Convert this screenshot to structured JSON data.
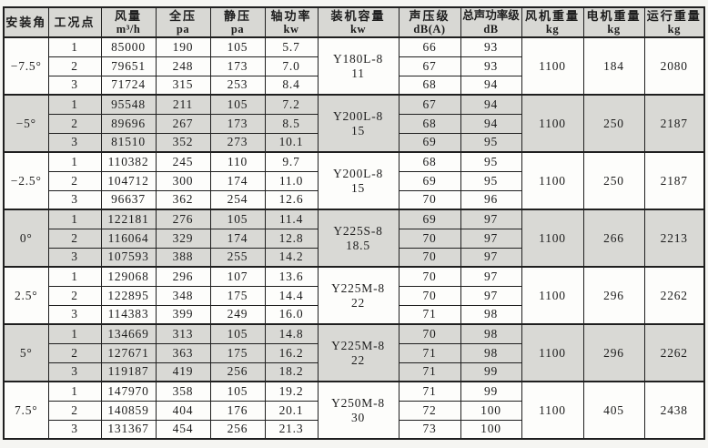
{
  "colors": {
    "page_bg": "#f5f5f2",
    "header_bg": "#d8d8d4",
    "shaded_row_bg": "#d9d9d5",
    "plain_row_bg": "#fdfdfb",
    "border": "#1f1f1f",
    "text": "#1d1d1d"
  },
  "table": {
    "columns": [
      {
        "label": "安装角",
        "unit": ""
      },
      {
        "label": "工况点",
        "unit": ""
      },
      {
        "label": "风量",
        "unit": "m³/h"
      },
      {
        "label": "全压",
        "unit": "pa"
      },
      {
        "label": "静压",
        "unit": "pa"
      },
      {
        "label": "轴功率",
        "unit": "kw"
      },
      {
        "label": "装机容量",
        "unit": "kw"
      },
      {
        "label": "声压级",
        "unit": "dB(A)"
      },
      {
        "label": "总声功率级",
        "unit": "dB"
      },
      {
        "label": "风机重量",
        "unit": "kg"
      },
      {
        "label": "电机重量",
        "unit": "kg"
      },
      {
        "label": "运行重量",
        "unit": "kg"
      }
    ],
    "groups": [
      {
        "angle": "−7.5°",
        "motor_model": "Y180L-8",
        "motor_power_kw": "11",
        "fan_weight": "1100",
        "motor_weight": "184",
        "running_weight": "2080",
        "shaded": false,
        "rows": [
          {
            "point": "1",
            "airflow": "85000",
            "total_pressure": "190",
            "static_pressure": "105",
            "shaft_power": "5.7",
            "sound_pressure": "66",
            "sound_power": "93"
          },
          {
            "point": "2",
            "airflow": "79651",
            "total_pressure": "248",
            "static_pressure": "173",
            "shaft_power": "7.0",
            "sound_pressure": "67",
            "sound_power": "93"
          },
          {
            "point": "3",
            "airflow": "71724",
            "total_pressure": "315",
            "static_pressure": "253",
            "shaft_power": "8.4",
            "sound_pressure": "68",
            "sound_power": "94"
          }
        ]
      },
      {
        "angle": "−5°",
        "motor_model": "Y200L-8",
        "motor_power_kw": "15",
        "fan_weight": "1100",
        "motor_weight": "250",
        "running_weight": "2187",
        "shaded": true,
        "rows": [
          {
            "point": "1",
            "airflow": "95548",
            "total_pressure": "211",
            "static_pressure": "105",
            "shaft_power": "7.2",
            "sound_pressure": "67",
            "sound_power": "94"
          },
          {
            "point": "2",
            "airflow": "89696",
            "total_pressure": "267",
            "static_pressure": "173",
            "shaft_power": "8.5",
            "sound_pressure": "68",
            "sound_power": "94"
          },
          {
            "point": "3",
            "airflow": "81510",
            "total_pressure": "352",
            "static_pressure": "273",
            "shaft_power": "10.1",
            "sound_pressure": "69",
            "sound_power": "95"
          }
        ]
      },
      {
        "angle": "−2.5°",
        "motor_model": "Y200L-8",
        "motor_power_kw": "15",
        "fan_weight": "1100",
        "motor_weight": "250",
        "running_weight": "2187",
        "shaded": false,
        "rows": [
          {
            "point": "1",
            "airflow": "110382",
            "total_pressure": "245",
            "static_pressure": "110",
            "shaft_power": "9.7",
            "sound_pressure": "68",
            "sound_power": "95"
          },
          {
            "point": "2",
            "airflow": "104712",
            "total_pressure": "300",
            "static_pressure": "174",
            "shaft_power": "11.0",
            "sound_pressure": "69",
            "sound_power": "95"
          },
          {
            "point": "3",
            "airflow": "96637",
            "total_pressure": "362",
            "static_pressure": "254",
            "shaft_power": "12.6",
            "sound_pressure": "70",
            "sound_power": "96"
          }
        ]
      },
      {
        "angle": "0°",
        "motor_model": "Y225S-8",
        "motor_power_kw": "18.5",
        "fan_weight": "1100",
        "motor_weight": "266",
        "running_weight": "2213",
        "shaded": true,
        "rows": [
          {
            "point": "1",
            "airflow": "122181",
            "total_pressure": "276",
            "static_pressure": "105",
            "shaft_power": "11.4",
            "sound_pressure": "69",
            "sound_power": "97"
          },
          {
            "point": "2",
            "airflow": "116064",
            "total_pressure": "329",
            "static_pressure": "174",
            "shaft_power": "12.8",
            "sound_pressure": "70",
            "sound_power": "97"
          },
          {
            "point": "3",
            "airflow": "107593",
            "total_pressure": "388",
            "static_pressure": "255",
            "shaft_power": "14.2",
            "sound_pressure": "70",
            "sound_power": "97"
          }
        ]
      },
      {
        "angle": "2.5°",
        "motor_model": "Y225M-8",
        "motor_power_kw": "22",
        "fan_weight": "1100",
        "motor_weight": "296",
        "running_weight": "2262",
        "shaded": false,
        "rows": [
          {
            "point": "1",
            "airflow": "129068",
            "total_pressure": "296",
            "static_pressure": "107",
            "shaft_power": "13.6",
            "sound_pressure": "70",
            "sound_power": "97"
          },
          {
            "point": "2",
            "airflow": "122895",
            "total_pressure": "348",
            "static_pressure": "175",
            "shaft_power": "14.4",
            "sound_pressure": "70",
            "sound_power": "97"
          },
          {
            "point": "3",
            "airflow": "114383",
            "total_pressure": "399",
            "static_pressure": "249",
            "shaft_power": "16.0",
            "sound_pressure": "71",
            "sound_power": "98"
          }
        ]
      },
      {
        "angle": "5°",
        "motor_model": "Y225M-8",
        "motor_power_kw": "22",
        "fan_weight": "1100",
        "motor_weight": "296",
        "running_weight": "2262",
        "shaded": true,
        "rows": [
          {
            "point": "1",
            "airflow": "134669",
            "total_pressure": "313",
            "static_pressure": "105",
            "shaft_power": "14.8",
            "sound_pressure": "70",
            "sound_power": "98"
          },
          {
            "point": "2",
            "airflow": "127671",
            "total_pressure": "363",
            "static_pressure": "175",
            "shaft_power": "16.2",
            "sound_pressure": "71",
            "sound_power": "98"
          },
          {
            "point": "3",
            "airflow": "119187",
            "total_pressure": "419",
            "static_pressure": "256",
            "shaft_power": "18.2",
            "sound_pressure": "71",
            "sound_power": "99"
          }
        ]
      },
      {
        "angle": "7.5°",
        "motor_model": "Y250M-8",
        "motor_power_kw": "30",
        "fan_weight": "1100",
        "motor_weight": "405",
        "running_weight": "2438",
        "shaded": false,
        "rows": [
          {
            "point": "1",
            "airflow": "147970",
            "total_pressure": "358",
            "static_pressure": "105",
            "shaft_power": "19.2",
            "sound_pressure": "71",
            "sound_power": "99"
          },
          {
            "point": "2",
            "airflow": "140859",
            "total_pressure": "404",
            "static_pressure": "176",
            "shaft_power": "20.1",
            "sound_pressure": "72",
            "sound_power": "100"
          },
          {
            "point": "3",
            "airflow": "131367",
            "total_pressure": "454",
            "static_pressure": "256",
            "shaft_power": "21.3",
            "sound_pressure": "73",
            "sound_power": "100"
          }
        ]
      }
    ]
  }
}
